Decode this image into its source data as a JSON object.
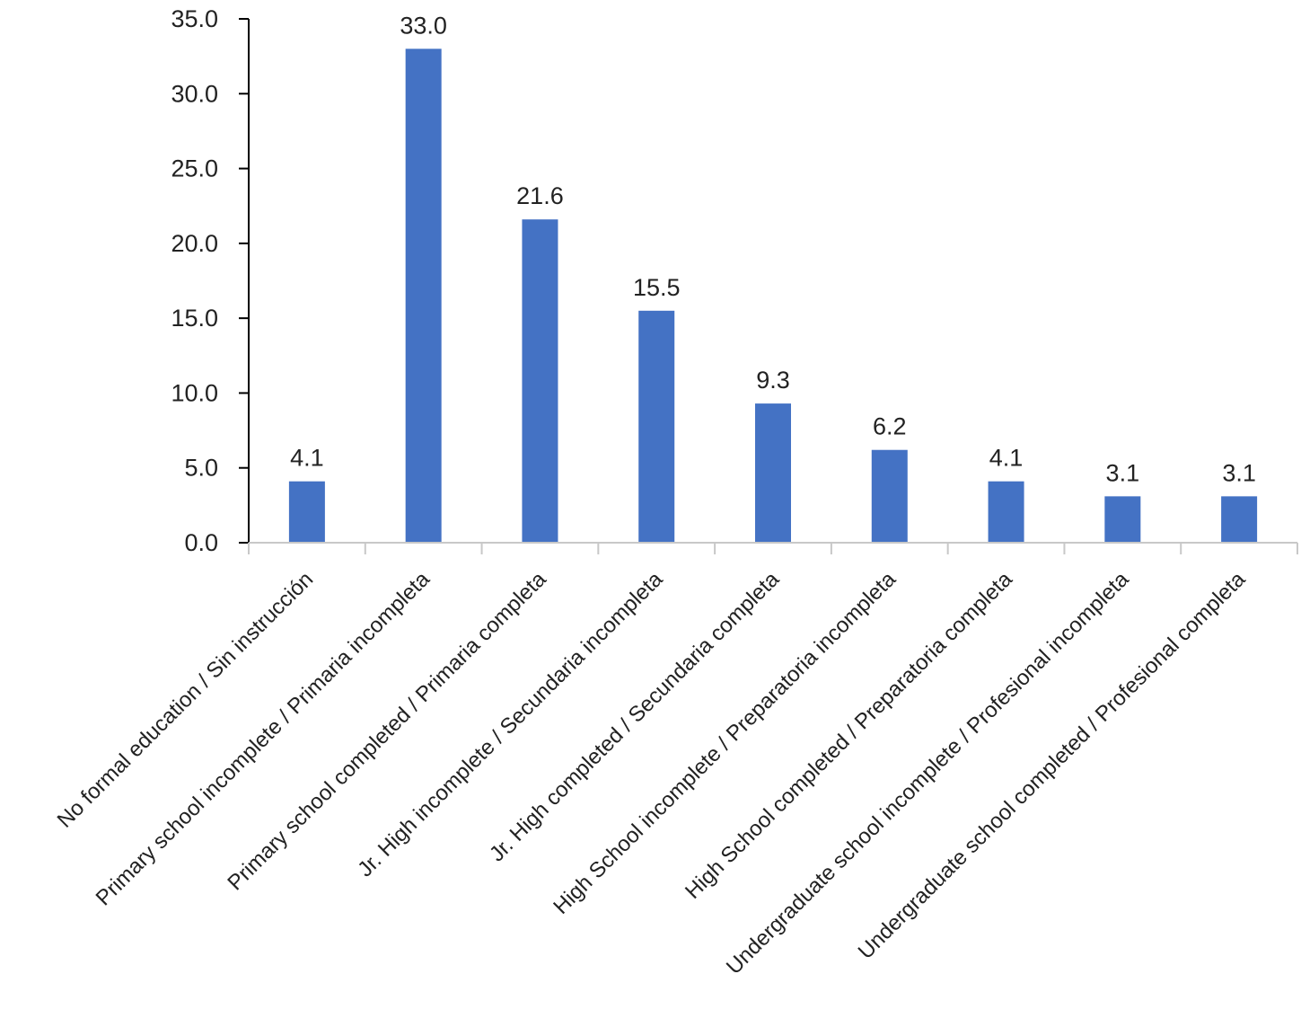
{
  "chart_data": {
    "type": "bar",
    "categories": [
      "No formal education / Sin instrucción",
      "Primary school incomplete / Primaria incompleta",
      "Primary school completed / Primaria completa",
      "Jr. High incomplete / Secundaria incompleta",
      "Jr. High completed / Secundaria completa",
      "High School incomplete / Preparatoria incompleta",
      "High School completed / Preparatoria completa",
      "Undergraduate school incomplete / Profesional incompleta",
      "Undergraduate school completed / Profesional completa"
    ],
    "values": [
      4.1,
      33.0,
      21.6,
      15.5,
      9.3,
      6.2,
      4.1,
      3.1,
      3.1
    ],
    "data_labels": [
      "4.1",
      "33.0",
      "21.6",
      "15.5",
      "9.3",
      "6.2",
      "4.1",
      "3.1",
      "3.1"
    ],
    "y_ticks": [
      "0.0",
      "5.0",
      "10.0",
      "15.0",
      "20.0",
      "25.0",
      "30.0",
      "35.0"
    ],
    "ylim": [
      0,
      35
    ],
    "grid": false,
    "bar_color": "#4472C4",
    "axis_color": "#000000",
    "category_axis_color": "#C8C8C8"
  }
}
